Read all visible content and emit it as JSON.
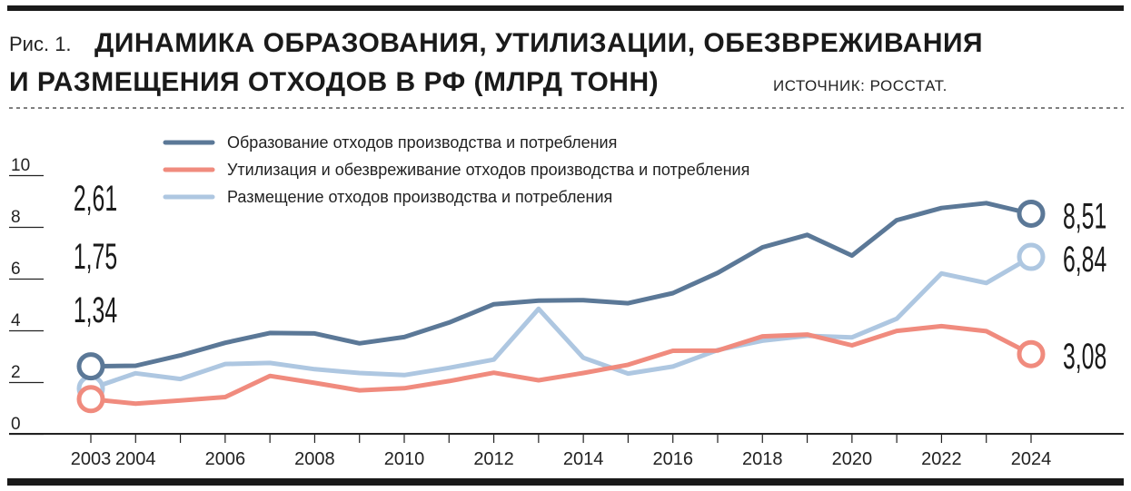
{
  "header": {
    "fig_label": "Рис. 1.",
    "title_line1": "ДИНАМИКА ОБРАЗОВАНИЯ, УТИЛИЗАЦИИ, ОБЕЗВРЕЖИВАНИЯ",
    "title_line2": "И РАЗМЕЩЕНИЯ ОТХОДОВ В РФ (МЛРД ТОНН)",
    "source": "ИСТОЧНИК: РОССТАТ."
  },
  "chart_data": {
    "type": "line",
    "title": "ДИНАМИКА ОБРАЗОВАНИЯ, УТИЛИЗАЦИИ, ОБЕЗВРЕЖИВАНИЯ И РАЗМЕЩЕНИЯ ОТХОДОВ В РФ (МЛРД ТОНН)",
    "xlabel": "",
    "ylabel": "",
    "ylim": [
      0,
      10
    ],
    "yticks": [
      0,
      2,
      4,
      6,
      8,
      10
    ],
    "xlim": [
      2003,
      2024
    ],
    "xticks": [
      2003,
      2004,
      2006,
      2008,
      2010,
      2012,
      2014,
      2016,
      2018,
      2020,
      2022,
      2024
    ],
    "grid": false,
    "legend_position": "top",
    "x": [
      2003,
      2004,
      2005,
      2006,
      2007,
      2008,
      2009,
      2010,
      2011,
      2012,
      2013,
      2014,
      2015,
      2016,
      2017,
      2018,
      2019,
      2020,
      2021,
      2022,
      2023,
      2024
    ],
    "series": [
      {
        "name": "Образование отходов производства и потребления",
        "color": "#5b7897",
        "values": [
          2.61,
          2.63,
          3.03,
          3.52,
          3.9,
          3.88,
          3.5,
          3.74,
          4.3,
          5.01,
          5.15,
          5.17,
          5.05,
          5.44,
          6.22,
          7.21,
          7.69,
          6.89,
          8.26,
          8.73,
          8.92,
          8.51
        ],
        "start_label": "2,61",
        "end_label": "8,51"
      },
      {
        "name": "Утилизация и обезвреживание отходов производства и потребления",
        "color": "#f08b7e",
        "values": [
          1.34,
          1.17,
          1.29,
          1.42,
          2.24,
          1.97,
          1.68,
          1.76,
          2.04,
          2.36,
          2.07,
          2.35,
          2.67,
          3.21,
          3.22,
          3.77,
          3.84,
          3.42,
          3.98,
          4.16,
          3.97,
          3.08
        ],
        "start_label": "1,34",
        "end_label": "3,08"
      },
      {
        "name": "Размещение отходов производства и потребления",
        "color": "#aec7e1",
        "values": [
          1.75,
          2.34,
          2.12,
          2.7,
          2.74,
          2.5,
          2.35,
          2.27,
          2.55,
          2.87,
          4.83,
          2.94,
          2.33,
          2.6,
          3.24,
          3.6,
          3.79,
          3.73,
          4.45,
          6.2,
          5.83,
          6.84
        ],
        "start_label": "1,75",
        "end_label": "6,84"
      }
    ]
  }
}
